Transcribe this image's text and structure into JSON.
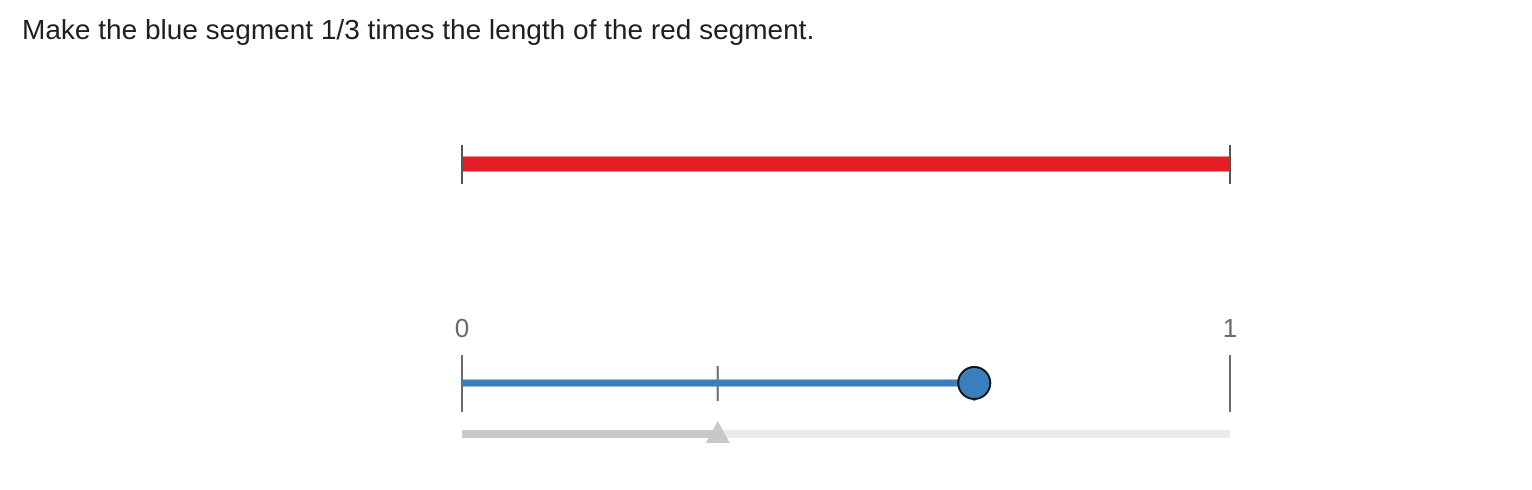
{
  "prompt": {
    "text": "Make the blue segment 1/3 times the length of the red segment."
  },
  "reference_segment": {
    "color": "#e41e26",
    "length": 1
  },
  "number_line": {
    "min_label": "0",
    "max_label": "1",
    "tick_color": "#6b6b6b"
  },
  "blue_segment": {
    "color": "#3a7fbd",
    "value": 0.667,
    "interior_tick_value": 0.333
  },
  "progress_slider": {
    "value": 0.333,
    "filled_color": "#c8c8c8",
    "track_color": "#ebebeb"
  }
}
